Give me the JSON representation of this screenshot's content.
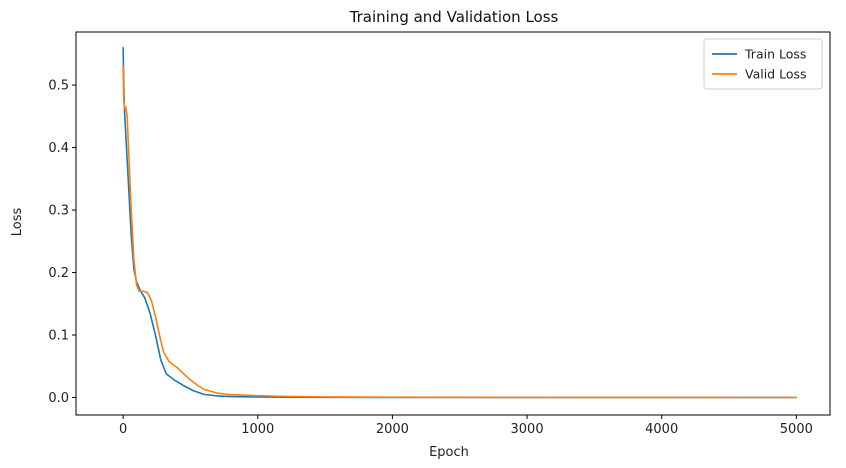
{
  "chart_data": {
    "type": "line",
    "title": "Training and Validation Loss",
    "xlabel": "Epoch",
    "ylabel": "Loss",
    "xlim": [
      -350,
      5250
    ],
    "ylim": [
      -0.028,
      0.585
    ],
    "xticks": [
      0,
      1000,
      2000,
      3000,
      4000,
      5000
    ],
    "yticks": [
      0.0,
      0.1,
      0.2,
      0.3,
      0.4,
      0.5
    ],
    "ytick_labels": [
      "0.0",
      "0.1",
      "0.2",
      "0.3",
      "0.4",
      "0.5"
    ],
    "grid": false,
    "legend": "top-right",
    "series": [
      {
        "name": "Train Loss",
        "color": "#1f77b4",
        "x": [
          0,
          5,
          10,
          20,
          40,
          60,
          80,
          100,
          130,
          160,
          200,
          240,
          280,
          320,
          380,
          450,
          520,
          600,
          700,
          800,
          1000,
          1200,
          1500,
          2000,
          3000,
          4000,
          5000
        ],
        "y": [
          0.56,
          0.5,
          0.46,
          0.42,
          0.34,
          0.26,
          0.205,
          0.185,
          0.17,
          0.16,
          0.135,
          0.1,
          0.06,
          0.038,
          0.028,
          0.019,
          0.011,
          0.005,
          0.0025,
          0.0015,
          0.0008,
          0.0004,
          0.0002,
          0.0001,
          0.0,
          0.0,
          0.0
        ]
      },
      {
        "name": "Valid Loss",
        "color": "#ff7f0e",
        "x": [
          0,
          5,
          10,
          20,
          30,
          40,
          60,
          80,
          100,
          120,
          150,
          180,
          210,
          240,
          270,
          300,
          340,
          400,
          450,
          500,
          550,
          600,
          700,
          800,
          1000,
          1200,
          1500,
          2000,
          3000,
          4000,
          5000
        ],
        "y": [
          0.53,
          0.475,
          0.462,
          0.465,
          0.45,
          0.4,
          0.3,
          0.22,
          0.18,
          0.17,
          0.17,
          0.168,
          0.155,
          0.13,
          0.1,
          0.073,
          0.058,
          0.048,
          0.038,
          0.028,
          0.02,
          0.013,
          0.007,
          0.0045,
          0.003,
          0.0018,
          0.001,
          0.0005,
          0.0002,
          0.0001,
          0.0
        ]
      }
    ]
  }
}
